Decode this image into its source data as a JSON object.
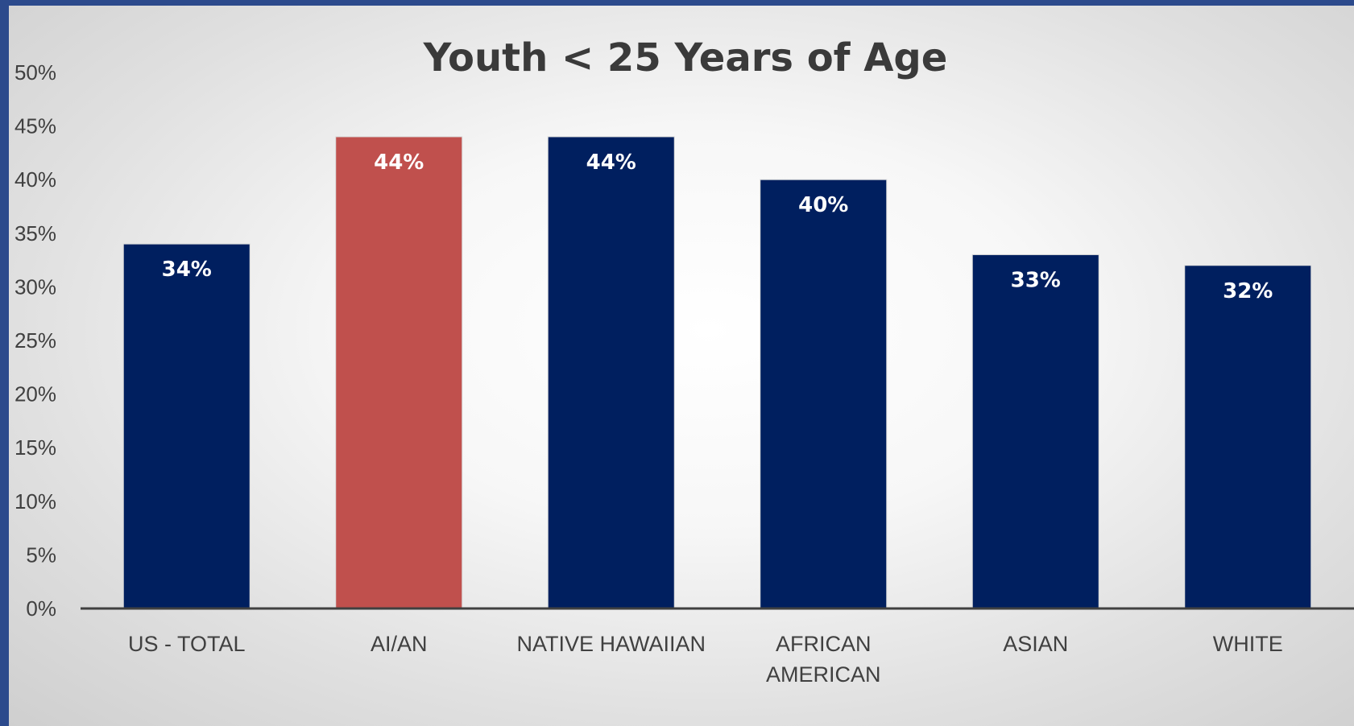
{
  "chart_data": {
    "type": "bar",
    "title": "Youth < 25 Years of Age",
    "categories": [
      [
        "US - TOTAL"
      ],
      [
        "AI/AN"
      ],
      [
        "NATIVE HAWAIIAN"
      ],
      [
        "AFRICAN",
        "AMERICAN"
      ],
      [
        "ASIAN"
      ],
      [
        "WHITE"
      ]
    ],
    "values": [
      34,
      44,
      44,
      40,
      33,
      32
    ],
    "data_labels": [
      "34%",
      "44%",
      "44%",
      "40%",
      "33%",
      "32%"
    ],
    "bar_colors": [
      "#001f5f",
      "#c0504d",
      "#001f5f",
      "#001f5f",
      "#001f5f",
      "#001f5f"
    ],
    "ylim": [
      0,
      50
    ],
    "yticks": [
      "0%",
      "5%",
      "10%",
      "15%",
      "20%",
      "25%",
      "30%",
      "35%",
      "40%",
      "45%",
      "50%"
    ],
    "xlabel": "",
    "ylabel": "",
    "grid": false,
    "legend": "none"
  }
}
